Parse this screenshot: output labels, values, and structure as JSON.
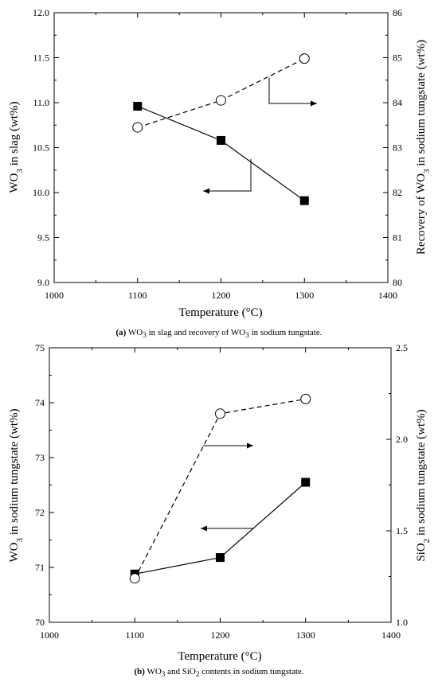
{
  "chart_data": [
    {
      "id": "a",
      "type": "line",
      "xlabel": "Temperature (°C)",
      "ylabel_left": {
        "pre": "WO",
        "sub": "3",
        "post": " in slag (wt%)"
      },
      "ylabel_right": {
        "pre": "Recovery of WO",
        "sub": "3",
        "post": " in sodium tungstate (wt%)"
      },
      "xlim": [
        1000,
        1400
      ],
      "xticks": [
        "1000",
        "1100",
        "1200",
        "1300",
        "1400"
      ],
      "ylim_left": [
        9.0,
        12.0
      ],
      "yticks_left": [
        "9.0",
        "9.5",
        "10.0",
        "10.5",
        "11.0",
        "11.5",
        "12.0"
      ],
      "ylim_right": [
        80,
        86
      ],
      "yticks_right": [
        "80",
        "81",
        "82",
        "83",
        "84",
        "85",
        "86"
      ],
      "x": [
        1100,
        1200,
        1300
      ],
      "series": [
        {
          "axis": "left",
          "marker": "filled-square",
          "line": "solid",
          "values": [
            10.96,
            10.58,
            9.91
          ]
        },
        {
          "axis": "right",
          "marker": "open-circle",
          "line": "dashed",
          "values": [
            83.45,
            84.05,
            84.98
          ]
        }
      ],
      "caption": {
        "label": "(a)",
        "pre": " WO",
        "sub1": "3",
        "mid": " in slag and recovery of WO",
        "sub2": "3",
        "post": " in sodium tungstate."
      }
    },
    {
      "id": "b",
      "type": "line",
      "xlabel": "Temperature (°C)",
      "ylabel_left": {
        "pre": "WO",
        "sub": "3",
        "post": " in sodium tungstate (wt%)"
      },
      "ylabel_right": {
        "pre": "SiO",
        "sub": "2",
        "post": " in sodium tungstate (wt%)"
      },
      "xlim": [
        1000,
        1400
      ],
      "xticks": [
        "1000",
        "1100",
        "1200",
        "1300",
        "1400"
      ],
      "ylim_left": [
        70,
        75
      ],
      "yticks_left": [
        "70",
        "71",
        "72",
        "73",
        "74",
        "75"
      ],
      "ylim_right": [
        1.0,
        2.5
      ],
      "yticks_right": [
        "1.0",
        "1.5",
        "2.0",
        "2.5"
      ],
      "x": [
        1100,
        1200,
        1300
      ],
      "series": [
        {
          "axis": "left",
          "marker": "filled-square",
          "line": "solid",
          "values": [
            70.88,
            71.18,
            72.55
          ]
        },
        {
          "axis": "right",
          "marker": "open-circle",
          "line": "dashed",
          "values": [
            1.24,
            2.14,
            2.22
          ]
        }
      ],
      "caption": {
        "label": "(b)",
        "pre": " WO",
        "sub1": "3",
        "mid": " and SiO",
        "sub2": "2",
        "post": " contents in sodium tungstate."
      }
    }
  ]
}
